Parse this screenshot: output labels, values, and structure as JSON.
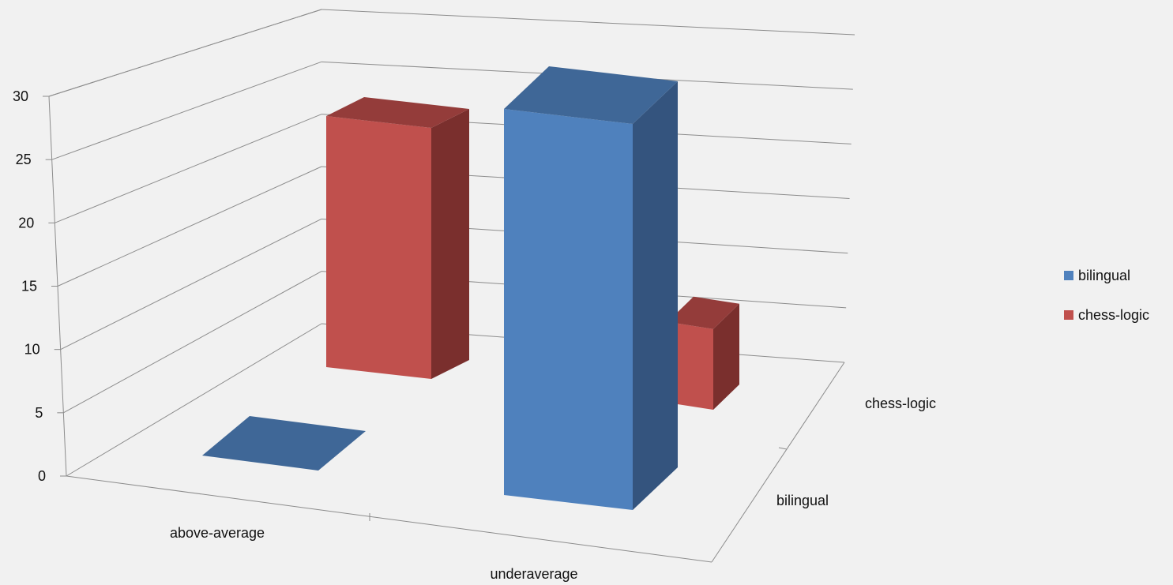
{
  "chart_data": {
    "type": "bar",
    "subtype": "3d-column",
    "title": "",
    "xlabel": "",
    "ylabel": "",
    "categories": [
      "above-average",
      "underaverage"
    ],
    "depth_categories": [
      "bilingual",
      "chess-logic"
    ],
    "series": [
      {
        "name": "bilingual",
        "values": [
          0,
          30
        ],
        "color": "#4f81bd"
      },
      {
        "name": "chess-logic",
        "values": [
          20,
          7
        ],
        "color": "#c0504d"
      }
    ],
    "ylim": [
      0,
      30
    ],
    "yticks": [
      0,
      5,
      10,
      15,
      20,
      25,
      30
    ],
    "grid": true,
    "legend": {
      "placement": "right",
      "entries": [
        "bilingual",
        "chess-logic"
      ]
    }
  },
  "palette": {
    "background": "#f1f1f1",
    "gridline": "#8c8c8c",
    "bilingual_front": "#4f81bd",
    "bilingual_top": "#3f6797",
    "bilingual_side": "#34547e",
    "chess_front": "#c0504d",
    "chess_top": "#943c3a",
    "chess_side": "#7a2f2d"
  }
}
